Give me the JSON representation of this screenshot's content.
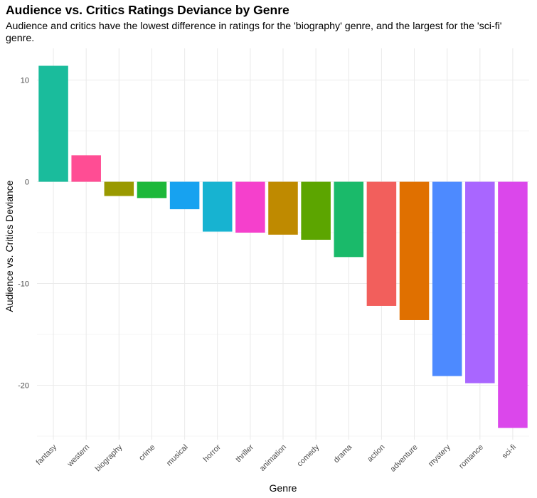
{
  "chart_data": {
    "type": "bar",
    "title": "Audience vs. Critics Ratings Deviance by Genre",
    "subtitle": "Audience and critics have the lowest difference in ratings for the 'biography' genre, and the largest for the 'sci-fi' genre.",
    "xlabel": "Genre",
    "ylabel": "Audience vs. Critics Deviance",
    "categories": [
      "fantasy",
      "western",
      "biography",
      "crime",
      "musical",
      "horror",
      "thriller",
      "animation",
      "comedy",
      "drama",
      "action",
      "adventure",
      "mystery",
      "romance",
      "sci-fi"
    ],
    "values": [
      11.4,
      2.6,
      -1.4,
      -1.6,
      -2.7,
      -4.9,
      -5.0,
      -5.2,
      -5.7,
      -7.4,
      -12.2,
      -13.6,
      -19.1,
      -19.8,
      -24.2
    ],
    "colors": [
      "#1ABC9C",
      "#FF4D94",
      "#999900",
      "#1DB83A",
      "#17A2F0",
      "#17B3D1",
      "#F540CC",
      "#BF8A00",
      "#5CA500",
      "#1ABA6A",
      "#F25F5C",
      "#E07000",
      "#4D8AFF",
      "#A966FF",
      "#DB47EB"
    ],
    "yticks": [
      10,
      0,
      -10,
      -20
    ],
    "ylim": [
      -25.5,
      12.8
    ],
    "grid": true,
    "legend": "none"
  }
}
